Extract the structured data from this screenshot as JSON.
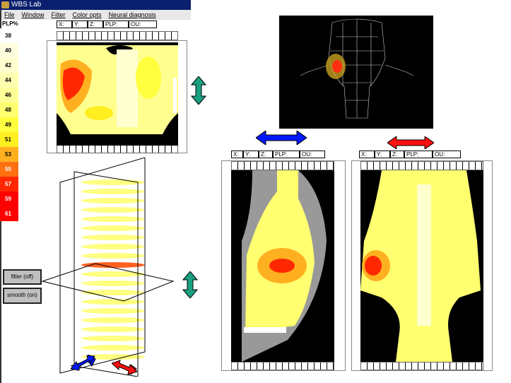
{
  "window": {
    "title": "WBS Lab"
  },
  "menu": [
    "File",
    "Window",
    "Filter",
    "Color opts",
    "Neural diagnosis"
  ],
  "fields": [
    "X:",
    "Y:",
    "Z:",
    "PLP:",
    "OU:"
  ],
  "legend": {
    "title": "PLP%",
    "items": [
      {
        "label": "38",
        "color": "#ffffff"
      },
      {
        "label": "40",
        "color": "#ffffe0"
      },
      {
        "label": "42",
        "color": "#ffffd0"
      },
      {
        "label": "44",
        "color": "#ffffb0"
      },
      {
        "label": "46",
        "color": "#ffff98"
      },
      {
        "label": "48",
        "color": "#ffff70"
      },
      {
        "label": "49",
        "color": "#ffff40"
      },
      {
        "label": "51",
        "color": "#ffee20"
      },
      {
        "label": "53",
        "color": "#ffb020"
      },
      {
        "label": "55",
        "color": "#ff7010"
      },
      {
        "label": "57",
        "color": "#ff2800"
      },
      {
        "label": "59",
        "color": "#ff0000"
      },
      {
        "label": "61",
        "color": "#ff0000"
      }
    ]
  },
  "buttons": {
    "filter": "filter (off)",
    "smooth": "smooth (on)"
  },
  "colors": {
    "accent_green": "#1aa080",
    "accent_blue": "#0018ff",
    "accent_red": "#ff1010"
  }
}
